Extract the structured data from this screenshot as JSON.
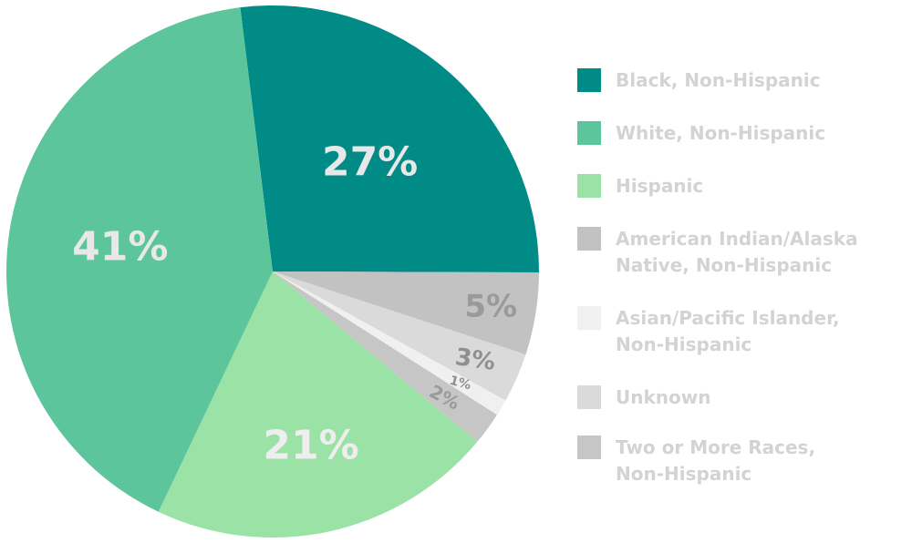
{
  "chart_data": {
    "type": "pie",
    "categories": [
      "Black, Non-Hispanic",
      "White, Non-Hispanic",
      "Hispanic",
      "American Indian/Alaska Native, Non-Hispanic",
      "Asian/Pacific Islander, Non-Hispanic",
      "Unknown",
      "Two or More Races, Non-Hispanic"
    ],
    "values": [
      27,
      41,
      21,
      5,
      1,
      3,
      2
    ],
    "value_labels": [
      "27%",
      "41%",
      "21%",
      "5%",
      "1%",
      "3%",
      "2%"
    ],
    "colors": [
      "#008b87",
      "#5cc59b",
      "#9be2a6",
      "#c2c2c2",
      "#f0f0f0",
      "#dadada",
      "#c6c6c6"
    ],
    "legend": "right"
  }
}
